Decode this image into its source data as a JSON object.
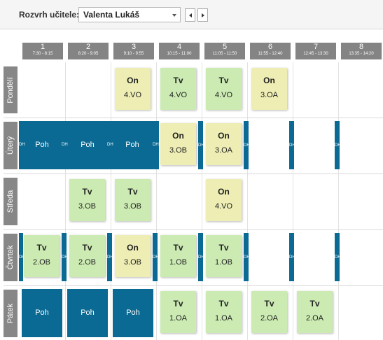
{
  "toolbar": {
    "label": "Rozvrh učitele:",
    "selected_teacher": "Valenta Lukáš"
  },
  "periods": [
    {
      "num": "1",
      "time": "7:30 - 8:15"
    },
    {
      "num": "2",
      "time": "8:20 - 9:05"
    },
    {
      "num": "3",
      "time": "9:10 - 9:55"
    },
    {
      "num": "4",
      "time": "10:15 - 11:00"
    },
    {
      "num": "5",
      "time": "11:05 - 11:50"
    },
    {
      "num": "6",
      "time": "11:55 - 12:40"
    },
    {
      "num": "7",
      "time": "12:45 - 13:30"
    },
    {
      "num": "8",
      "time": "13:35 - 14:20"
    }
  ],
  "days": [
    "Pondělí",
    "Úterý",
    "Středa",
    "Čtvrtek",
    "Pátek"
  ],
  "lessons": {
    "monday": [
      {
        "period": "3",
        "subject": "On",
        "class": "4.VO"
      },
      {
        "period": "4",
        "subject": "Tv",
        "class": "4.VO"
      },
      {
        "period": "5",
        "subject": "Tv",
        "class": "4.VO"
      },
      {
        "period": "6",
        "subject": "On",
        "class": "3.OA"
      }
    ],
    "tuesday": [
      {
        "period": "4",
        "subject": "On",
        "class": "3.OB"
      },
      {
        "period": "5",
        "subject": "On",
        "class": "3.OA"
      }
    ],
    "wednesday": [
      {
        "period": "2",
        "subject": "Tv",
        "class": "3.OB"
      },
      {
        "period": "3",
        "subject": "Tv",
        "class": "3.OB"
      },
      {
        "period": "5",
        "subject": "On",
        "class": "4.VO"
      }
    ],
    "thursday": [
      {
        "period": "1",
        "subject": "Tv",
        "class": "2.OB"
      },
      {
        "period": "2",
        "subject": "Tv",
        "class": "2.OB"
      },
      {
        "period": "3",
        "subject": "On",
        "class": "3.OB"
      },
      {
        "period": "4",
        "subject": "Tv",
        "class": "1.OB"
      },
      {
        "period": "5",
        "subject": "Tv",
        "class": "1.OB"
      }
    ],
    "friday": [
      {
        "period": "4",
        "subject": "Tv",
        "class": "1.OA"
      },
      {
        "period": "5",
        "subject": "Tv",
        "class": "1.OA"
      },
      {
        "period": "6",
        "subject": "Tv",
        "class": "2.OA"
      },
      {
        "period": "7",
        "subject": "Tv",
        "class": "2.OA"
      }
    ]
  },
  "duties": {
    "poh_label": "Poh",
    "break_label": "DH",
    "tuesday_poh": [
      "Poh",
      "Poh",
      "Poh"
    ],
    "friday_poh": [
      "Poh",
      "Poh",
      "Poh"
    ]
  },
  "colors": {
    "tv": "#ccebb3",
    "on": "#ededb4",
    "duty": "#0b6a93",
    "header": "#848484"
  }
}
